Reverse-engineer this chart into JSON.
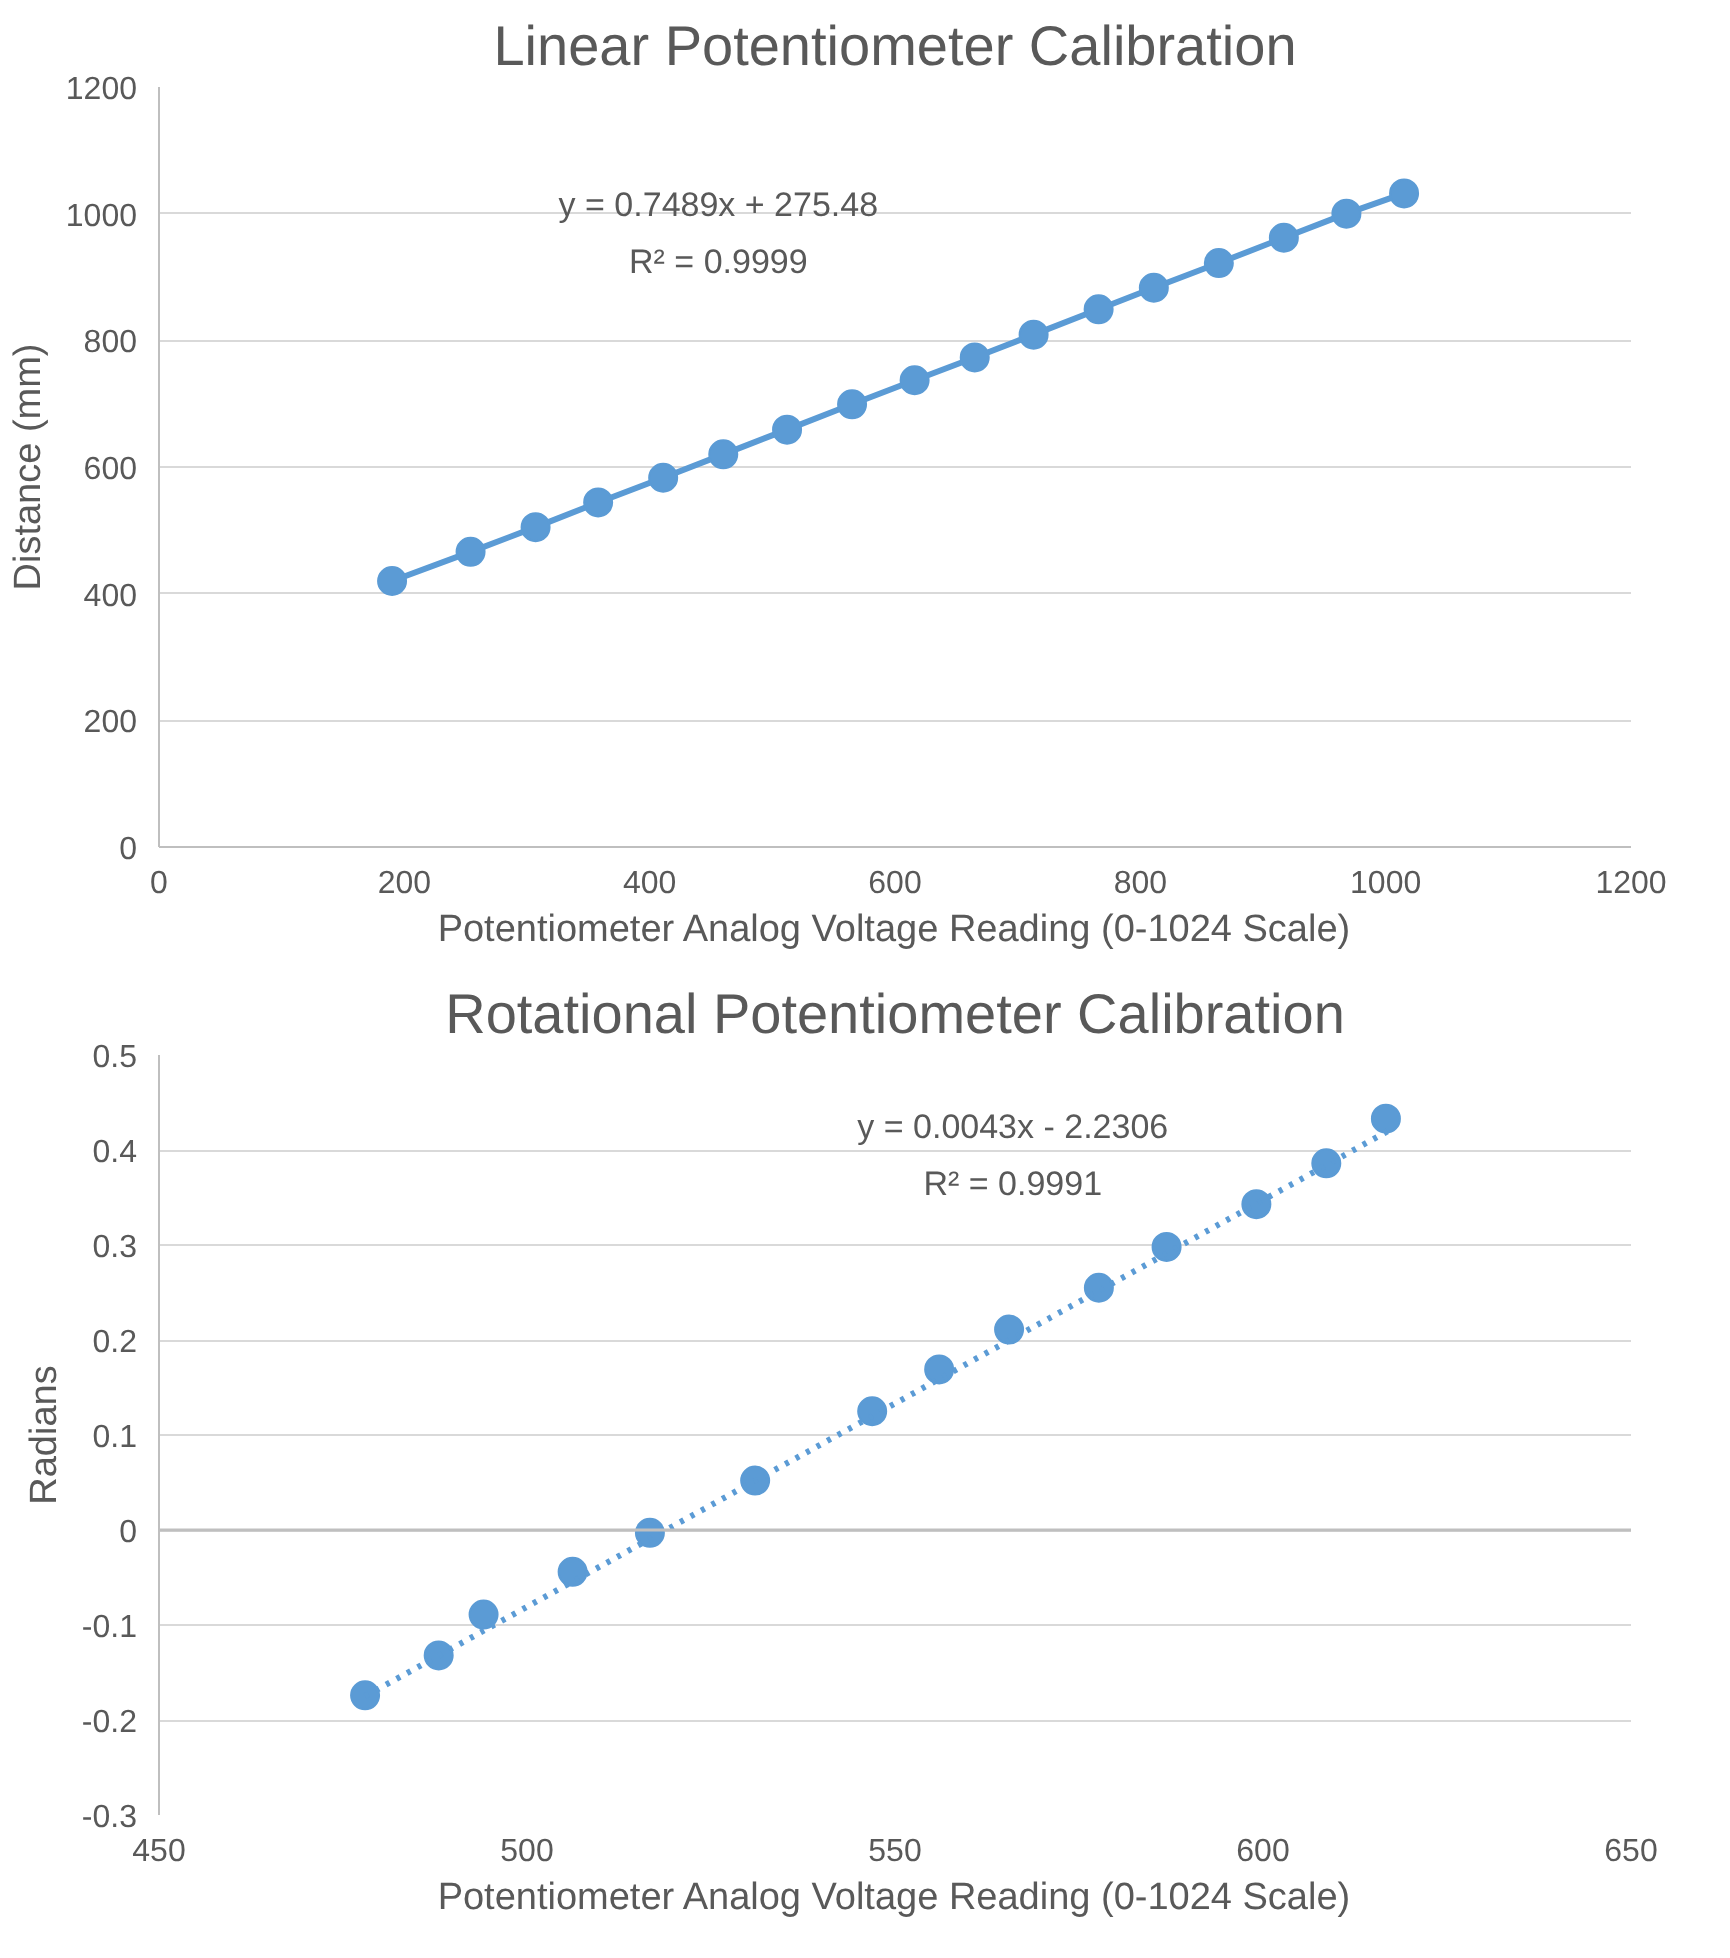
{
  "chart_data": [
    {
      "type": "line",
      "title": "Linear Potentiometer Calibration",
      "xlabel": "Potentiometer Analog Voltage Reading (0-1024 Scale)",
      "ylabel": "Distance (mm)",
      "x": [
        190,
        254,
        307,
        358,
        411,
        460,
        512,
        565,
        616,
        665,
        713,
        766,
        811,
        864,
        917,
        968,
        1015
      ],
      "series": [
        {
          "color": "#5b9bd5",
          "values": [
            420,
            466,
            505,
            544,
            583,
            620,
            659,
            699,
            737,
            773,
            809,
            849,
            883,
            922,
            962,
            1000,
            1032
          ]
        }
      ],
      "xlim": [
        0,
        1200
      ],
      "xticks": [
        0,
        200,
        400,
        600,
        800,
        1000,
        1200
      ],
      "ylim": [
        0,
        1200
      ],
      "yticks": [
        0,
        200,
        400,
        600,
        800,
        1000,
        1200
      ],
      "grid": "y",
      "marker": "circle",
      "line_style": "solid",
      "annotations": [
        "y = 0.7489x + 275.48",
        "R² = 0.9999"
      ]
    },
    {
      "type": "scatter",
      "title": "Rotational Potentiometer Calibration",
      "xlabel": "Potentiometer Analog Voltage Reading (0-1024 Scale)",
      "ylabel": "Radians",
      "x": [
        478.0,
        488.0,
        494.1,
        506.2,
        516.7,
        531.0,
        546.9,
        556.0,
        565.5,
        577.7,
        586.9,
        599.1,
        608.6,
        616.7
      ],
      "series": [
        {
          "color": "#5b9bd5",
          "values": [
            -0.174,
            -0.132,
            -0.089,
            -0.044,
            -0.003,
            0.052,
            0.125,
            0.169,
            0.211,
            0.255,
            0.298,
            0.343,
            0.386,
            0.433
          ]
        },
        {
          "type": "line",
          "color": "#5b9bd5",
          "line_style": "dotted",
          "marker": "none",
          "x": [
            478,
            617
          ],
          "values": [
            -0.175,
            0.42
          ]
        }
      ],
      "xlim": [
        450,
        650
      ],
      "xticks": [
        450,
        500,
        550,
        600,
        650
      ],
      "ylim": [
        -0.3,
        0.5
      ],
      "yticks": [
        -0.3,
        -0.2,
        -0.1,
        0,
        0.1,
        0.2,
        0.3,
        0.4,
        0.5
      ],
      "grid": "y",
      "marker": "circle",
      "annotations": [
        "y = 0.0043x - 2.2306",
        "R² = 0.9991"
      ]
    }
  ]
}
